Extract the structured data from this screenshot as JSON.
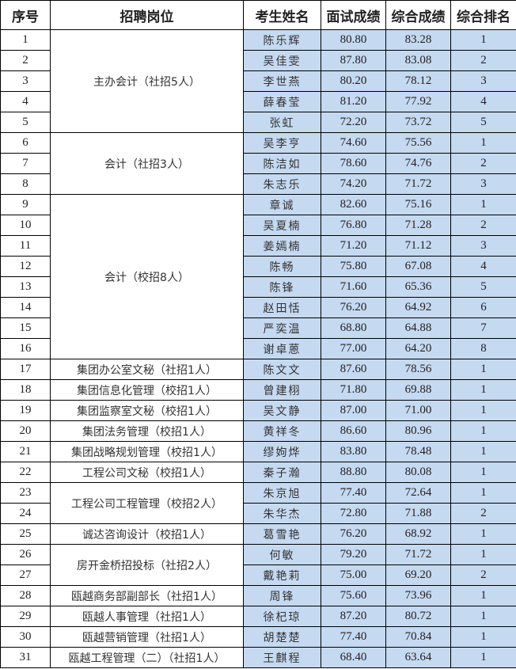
{
  "headers": [
    "序号",
    "招聘岗位",
    "考生姓名",
    "面试成绩",
    "综合成绩",
    "综合排名"
  ],
  "colors": {
    "highlight": "#C5D9F1",
    "border": "#000000"
  },
  "positions": [
    {
      "label": "主办会计（社招5人）",
      "span": 5
    },
    {
      "label": "会计（社招3人）",
      "span": 3
    },
    {
      "label": "会计（校招8人）",
      "span": 8
    },
    {
      "label": "集团办公室文秘（社招1人）",
      "span": 1
    },
    {
      "label": "集团信息化管理（校招1人）",
      "span": 1
    },
    {
      "label": "集团监察室文秘（校招1人）",
      "span": 1
    },
    {
      "label": "集团法务管理（校招1人）",
      "span": 1
    },
    {
      "label": "集团战略规划管理（校招1人）",
      "span": 1
    },
    {
      "label": "工程公司文秘（校招1人）",
      "span": 1
    },
    {
      "label": "工程公司工程管理（校招2人）",
      "span": 2
    },
    {
      "label": "诚达咨询设计（校招1人）",
      "span": 1
    },
    {
      "label": "房开金桥招投标（社招2人）",
      "span": 2
    },
    {
      "label": "瓯越商务部副部长（社招1人）",
      "span": 1
    },
    {
      "label": "瓯越人事管理（社招1人）",
      "span": 1
    },
    {
      "label": "瓯越营销管理（社招1人）",
      "span": 1
    },
    {
      "label": "瓯越工程管理（二）（社招1人）",
      "span": 1
    }
  ],
  "rows": [
    {
      "no": "1",
      "name": "陈乐辉",
      "interview": "80.80",
      "total": "83.28",
      "rank": "1"
    },
    {
      "no": "2",
      "name": "吴佳雯",
      "interview": "87.80",
      "total": "83.08",
      "rank": "2"
    },
    {
      "no": "3",
      "name": "李世燕",
      "interview": "80.20",
      "total": "78.12",
      "rank": "3"
    },
    {
      "no": "4",
      "name": "薛春莹",
      "interview": "81.20",
      "total": "77.92",
      "rank": "4"
    },
    {
      "no": "5",
      "name": "张虹",
      "interview": "72.20",
      "total": "73.72",
      "rank": "5"
    },
    {
      "no": "6",
      "name": "吴李亨",
      "interview": "74.60",
      "total": "75.56",
      "rank": "1"
    },
    {
      "no": "7",
      "name": "陈洁如",
      "interview": "78.60",
      "total": "74.76",
      "rank": "2"
    },
    {
      "no": "8",
      "name": "朱志乐",
      "interview": "74.20",
      "total": "71.72",
      "rank": "3"
    },
    {
      "no": "9",
      "name": "章诚",
      "interview": "82.60",
      "total": "75.16",
      "rank": "1"
    },
    {
      "no": "10",
      "name": "吴夏楠",
      "interview": "76.80",
      "total": "71.28",
      "rank": "2"
    },
    {
      "no": "11",
      "name": "姜嫣楠",
      "interview": "71.20",
      "total": "71.12",
      "rank": "3"
    },
    {
      "no": "12",
      "name": "陈畅",
      "interview": "75.80",
      "total": "67.08",
      "rank": "4"
    },
    {
      "no": "13",
      "name": "陈锋",
      "interview": "71.60",
      "total": "65.36",
      "rank": "5"
    },
    {
      "no": "14",
      "name": "赵田恬",
      "interview": "76.20",
      "total": "64.92",
      "rank": "6"
    },
    {
      "no": "15",
      "name": "严奕温",
      "interview": "68.80",
      "total": "64.88",
      "rank": "7"
    },
    {
      "no": "16",
      "name": "谢卓蒽",
      "interview": "77.00",
      "total": "64.20",
      "rank": "8"
    },
    {
      "no": "17",
      "name": "陈文文",
      "interview": "87.60",
      "total": "78.56",
      "rank": "1"
    },
    {
      "no": "18",
      "name": "曾建栩",
      "interview": "71.80",
      "total": "69.88",
      "rank": "1"
    },
    {
      "no": "19",
      "name": "吴文静",
      "interview": "87.00",
      "total": "71.00",
      "rank": "1"
    },
    {
      "no": "20",
      "name": "黄祥冬",
      "interview": "86.60",
      "total": "80.96",
      "rank": "1"
    },
    {
      "no": "21",
      "name": "缪姁烨",
      "interview": "83.80",
      "total": "78.48",
      "rank": "1"
    },
    {
      "no": "22",
      "name": "秦子瀚",
      "interview": "88.80",
      "total": "80.08",
      "rank": "1"
    },
    {
      "no": "23",
      "name": "朱京旭",
      "interview": "77.40",
      "total": "72.64",
      "rank": "1"
    },
    {
      "no": "24",
      "name": "朱华杰",
      "interview": "72.80",
      "total": "71.88",
      "rank": "2"
    },
    {
      "no": "25",
      "name": "葛雪艳",
      "interview": "76.20",
      "total": "68.92",
      "rank": "1"
    },
    {
      "no": "26",
      "name": "何敏",
      "interview": "79.20",
      "total": "71.72",
      "rank": "1"
    },
    {
      "no": "27",
      "name": "戴艳莉",
      "interview": "75.00",
      "total": "69.20",
      "rank": "2"
    },
    {
      "no": "28",
      "name": "周锋",
      "interview": "75.60",
      "total": "73.96",
      "rank": "1"
    },
    {
      "no": "29",
      "name": "徐杞琼",
      "interview": "87.20",
      "total": "80.72",
      "rank": "1"
    },
    {
      "no": "30",
      "name": "胡楚楚",
      "interview": "77.40",
      "total": "70.84",
      "rank": "1"
    },
    {
      "no": "31",
      "name": "王麒程",
      "interview": "68.40",
      "total": "63.64",
      "rank": "1"
    }
  ]
}
